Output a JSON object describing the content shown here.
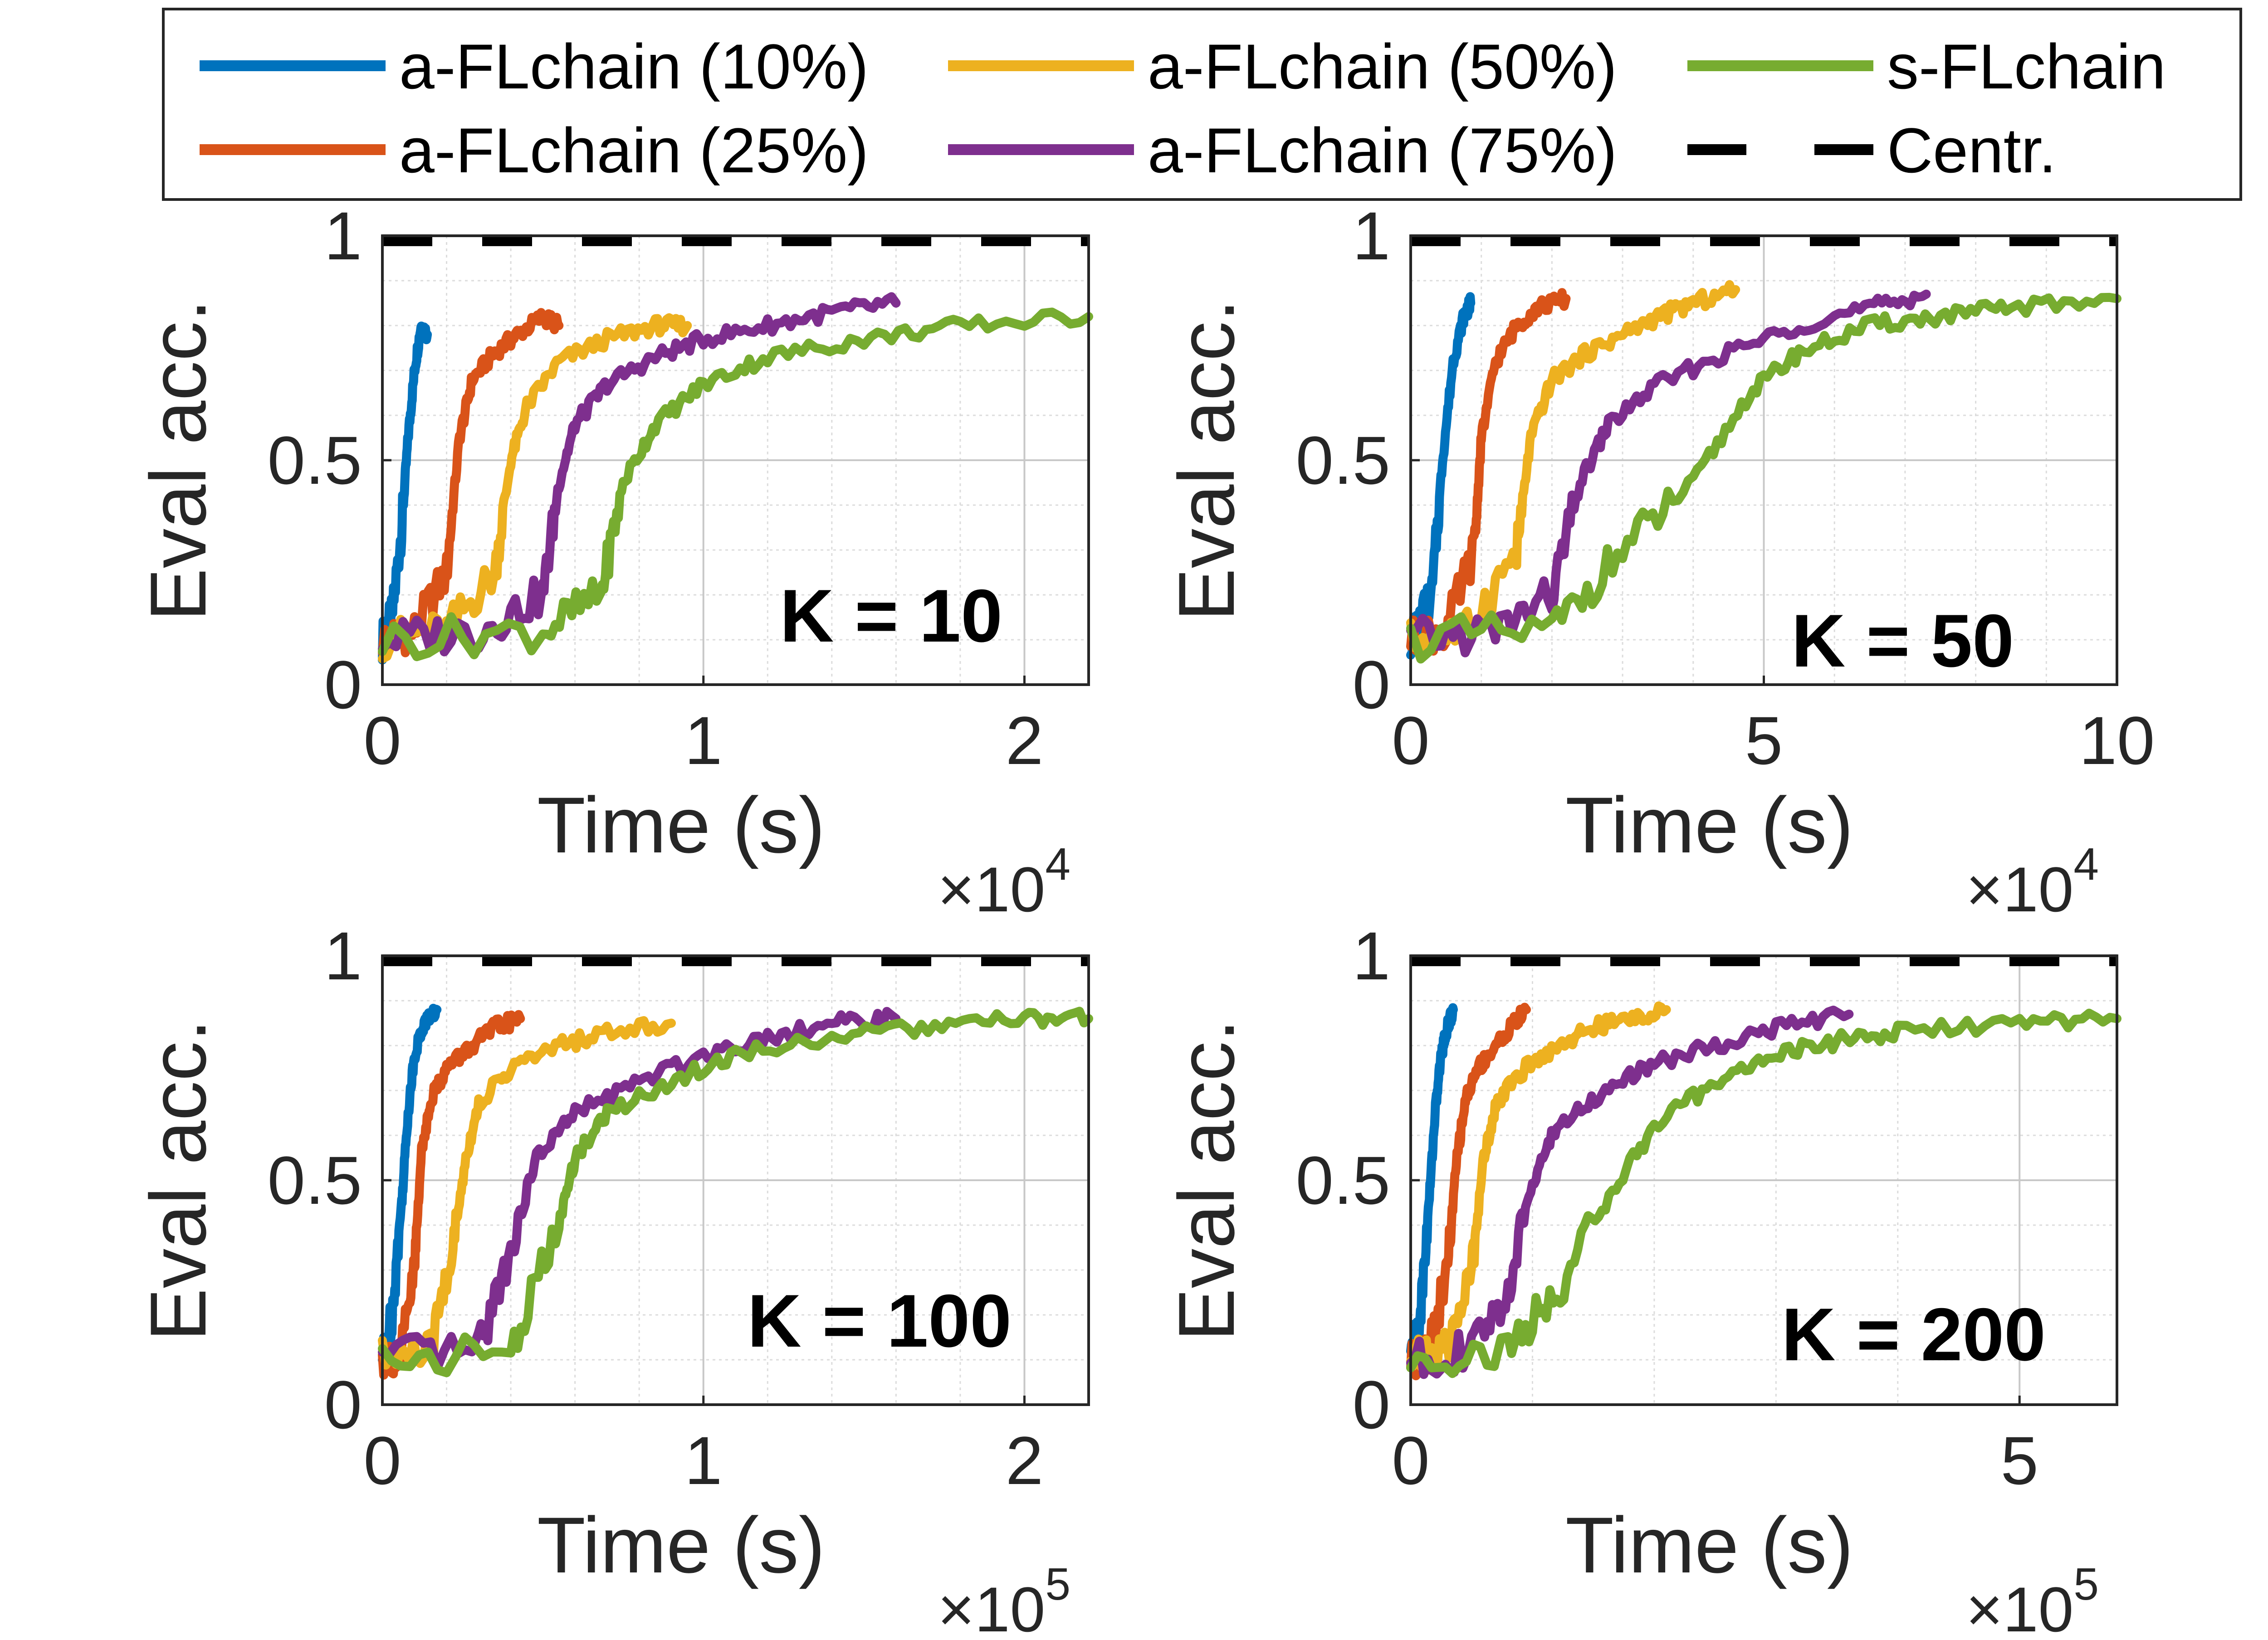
{
  "legend": {
    "entries": [
      {
        "label": "a-FLchain (10%)",
        "color": "#0072BD",
        "dashed": false
      },
      {
        "label": "a-FLchain (50%)",
        "color": "#EDB120",
        "dashed": false
      },
      {
        "label": "s-FLchain",
        "color": "#77AC30",
        "dashed": false
      },
      {
        "label": "a-FLchain (25%)",
        "color": "#D95319",
        "dashed": false
      },
      {
        "label": "a-FLchain (75%)",
        "color": "#7E2F8E",
        "dashed": false
      },
      {
        "label": "Centr.",
        "color": "#000000",
        "dashed": true
      }
    ]
  },
  "chart_data": [
    {
      "type": "line",
      "panel_label": "K = 10",
      "xlabel": "Time (s)",
      "ylabel": "Eval acc.",
      "x_exponent": "4",
      "xlim": [
        0,
        2.2
      ],
      "ylim": [
        0,
        1
      ],
      "xticks": [
        0,
        1,
        2
      ],
      "xtick_labels": [
        "0",
        "1",
        "2"
      ],
      "yticks": [
        0,
        0.5,
        1
      ],
      "ytick_labels": [
        "0",
        "0.5",
        "1"
      ],
      "grid": true,
      "series": [
        {
          "name": "a-FLchain (10%)",
          "x": [
            0,
            0.03,
            0.06,
            0.08,
            0.1,
            0.12,
            0.14
          ],
          "y": [
            0.1,
            0.15,
            0.35,
            0.55,
            0.7,
            0.8,
            0.78
          ]
        },
        {
          "name": "a-FLchain (25%)",
          "x": [
            0,
            0.1,
            0.2,
            0.24,
            0.28,
            0.35,
            0.42,
            0.5,
            0.55
          ],
          "y": [
            0.1,
            0.12,
            0.25,
            0.55,
            0.68,
            0.74,
            0.78,
            0.82,
            0.8
          ]
        },
        {
          "name": "a-FLchain (50%)",
          "x": [
            0,
            0.2,
            0.35,
            0.4,
            0.45,
            0.55,
            0.7,
            0.85,
            0.95
          ],
          "y": [
            0.1,
            0.12,
            0.25,
            0.5,
            0.62,
            0.72,
            0.77,
            0.8,
            0.8
          ]
        },
        {
          "name": "a-FLchain (75%)",
          "x": [
            0,
            0.3,
            0.5,
            0.55,
            0.6,
            0.7,
            0.85,
            1.0,
            1.2,
            1.4,
            1.6
          ],
          "y": [
            0.1,
            0.12,
            0.2,
            0.45,
            0.58,
            0.67,
            0.73,
            0.77,
            0.8,
            0.83,
            0.85
          ]
        },
        {
          "name": "s-FLchain",
          "x": [
            0,
            0.5,
            0.68,
            0.75,
            0.85,
            1.0,
            1.2,
            1.5,
            1.8,
            2.2
          ],
          "y": [
            0.1,
            0.12,
            0.2,
            0.45,
            0.58,
            0.67,
            0.73,
            0.77,
            0.8,
            0.82
          ]
        },
        {
          "name": "Centr.",
          "x": [
            0,
            2.2
          ],
          "y": [
            0.99,
            0.99
          ]
        }
      ]
    },
    {
      "type": "line",
      "panel_label": "K = 50",
      "xlabel": "Time (s)",
      "ylabel": "Eval acc.",
      "x_exponent": "4",
      "xlim": [
        0,
        10
      ],
      "ylim": [
        0,
        1
      ],
      "xticks": [
        0,
        5,
        10
      ],
      "xtick_labels": [
        "0",
        "5",
        "10"
      ],
      "yticks": [
        0,
        0.5,
        1
      ],
      "ytick_labels": [
        "0",
        "0.5",
        "1"
      ],
      "grid": true,
      "series": [
        {
          "name": "a-FLchain (10%)",
          "x": [
            0,
            0.3,
            0.45,
            0.6,
            0.75,
            0.85
          ],
          "y": [
            0.1,
            0.2,
            0.5,
            0.72,
            0.82,
            0.85
          ]
        },
        {
          "name": "a-FLchain (25%)",
          "x": [
            0,
            0.5,
            0.9,
            1.0,
            1.2,
            1.5,
            1.8,
            2.2
          ],
          "y": [
            0.1,
            0.12,
            0.3,
            0.55,
            0.72,
            0.8,
            0.84,
            0.86
          ]
        },
        {
          "name": "a-FLchain (50%)",
          "x": [
            0,
            0.8,
            1.5,
            1.7,
            2.0,
            2.5,
            3.0,
            3.5,
            4.0,
            4.6
          ],
          "y": [
            0.1,
            0.12,
            0.3,
            0.55,
            0.68,
            0.74,
            0.78,
            0.82,
            0.85,
            0.88
          ]
        },
        {
          "name": "a-FLchain (75%)",
          "x": [
            0,
            1.2,
            2.0,
            2.4,
            2.8,
            3.5,
            4.5,
            5.5,
            6.5,
            7.3
          ],
          "y": [
            0.1,
            0.12,
            0.2,
            0.45,
            0.58,
            0.67,
            0.74,
            0.8,
            0.84,
            0.87
          ]
        },
        {
          "name": "s-FLchain",
          "x": [
            0,
            2.0,
            3.0,
            4.0,
            4.8,
            5.5,
            6.5,
            7.5,
            8.5,
            10
          ],
          "y": [
            0.1,
            0.12,
            0.3,
            0.45,
            0.65,
            0.74,
            0.8,
            0.82,
            0.84,
            0.86
          ]
        },
        {
          "name": "Centr.",
          "x": [
            0,
            10
          ],
          "y": [
            0.99,
            0.99
          ]
        }
      ]
    },
    {
      "type": "line",
      "panel_label": "K = 100",
      "xlabel": "Time (s)",
      "ylabel": "Eval acc.",
      "x_exponent": "5",
      "xlim": [
        0,
        2.2
      ],
      "ylim": [
        0,
        1
      ],
      "xticks": [
        0,
        1,
        2
      ],
      "xtick_labels": [
        "0",
        "1",
        "2"
      ],
      "yticks": [
        0,
        0.5,
        1
      ],
      "ytick_labels": [
        "0",
        "0.5",
        "1"
      ],
      "grid": true,
      "series": [
        {
          "name": "a-FLchain (10%)",
          "x": [
            0,
            0.03,
            0.06,
            0.08,
            0.1,
            0.13,
            0.17
          ],
          "y": [
            0.1,
            0.2,
            0.45,
            0.65,
            0.78,
            0.85,
            0.88
          ]
        },
        {
          "name": "a-FLchain (25%)",
          "x": [
            0,
            0.06,
            0.1,
            0.12,
            0.15,
            0.2,
            0.28,
            0.35,
            0.43
          ],
          "y": [
            0.1,
            0.12,
            0.3,
            0.55,
            0.68,
            0.75,
            0.8,
            0.84,
            0.86
          ]
        },
        {
          "name": "a-FLchain (50%)",
          "x": [
            0,
            0.15,
            0.22,
            0.26,
            0.3,
            0.4,
            0.55,
            0.7,
            0.9
          ],
          "y": [
            0.1,
            0.12,
            0.35,
            0.55,
            0.67,
            0.75,
            0.8,
            0.83,
            0.85
          ]
        },
        {
          "name": "a-FLchain (75%)",
          "x": [
            0,
            0.3,
            0.4,
            0.48,
            0.6,
            0.8,
            1.0,
            1.2,
            1.4,
            1.6
          ],
          "y": [
            0.1,
            0.12,
            0.35,
            0.55,
            0.65,
            0.72,
            0.78,
            0.82,
            0.85,
            0.86
          ]
        },
        {
          "name": "s-FLchain",
          "x": [
            0,
            0.4,
            0.55,
            0.6,
            0.7,
            0.9,
            1.1,
            1.4,
            1.7,
            2.0,
            2.2
          ],
          "y": [
            0.1,
            0.12,
            0.4,
            0.55,
            0.65,
            0.72,
            0.78,
            0.82,
            0.84,
            0.86,
            0.86
          ]
        },
        {
          "name": "Centr.",
          "x": [
            0,
            2.2
          ],
          "y": [
            0.99,
            0.99
          ]
        }
      ]
    },
    {
      "type": "line",
      "panel_label": "K = 200",
      "xlabel": "Time (s)",
      "ylabel": "Eval acc.",
      "x_exponent": "5",
      "xlim": [
        0,
        5.8
      ],
      "ylim": [
        0,
        1
      ],
      "xticks": [
        0,
        5
      ],
      "xtick_labels": [
        "0",
        "5"
      ],
      "yticks": [
        0,
        0.5,
        1
      ],
      "ytick_labels": [
        "0",
        "0.5",
        "1"
      ],
      "grid": true,
      "series": [
        {
          "name": "a-FLchain (10%)",
          "x": [
            0,
            0.08,
            0.15,
            0.2,
            0.25,
            0.3,
            0.35
          ],
          "y": [
            0.1,
            0.2,
            0.45,
            0.65,
            0.78,
            0.84,
            0.88
          ]
        },
        {
          "name": "a-FLchain (25%)",
          "x": [
            0,
            0.15,
            0.3,
            0.38,
            0.45,
            0.55,
            0.7,
            0.85,
            0.95
          ],
          "y": [
            0.1,
            0.12,
            0.3,
            0.55,
            0.68,
            0.75,
            0.8,
            0.85,
            0.88
          ]
        },
        {
          "name": "a-FLchain (50%)",
          "x": [
            0,
            0.3,
            0.5,
            0.6,
            0.7,
            0.9,
            1.2,
            1.5,
            1.8,
            2.1
          ],
          "y": [
            0.1,
            0.12,
            0.3,
            0.55,
            0.67,
            0.74,
            0.8,
            0.84,
            0.86,
            0.88
          ]
        },
        {
          "name": "a-FLchain (75%)",
          "x": [
            0,
            0.5,
            0.8,
            1.0,
            1.2,
            1.6,
            2.0,
            2.5,
            3.0,
            3.6
          ],
          "y": [
            0.1,
            0.12,
            0.25,
            0.5,
            0.62,
            0.7,
            0.76,
            0.8,
            0.84,
            0.87
          ]
        },
        {
          "name": "s-FLchain",
          "x": [
            0,
            0.8,
            1.2,
            1.6,
            2.0,
            2.5,
            3.0,
            3.5,
            4.0,
            5.0,
            5.8
          ],
          "y": [
            0.1,
            0.12,
            0.25,
            0.45,
            0.62,
            0.72,
            0.78,
            0.81,
            0.83,
            0.85,
            0.86
          ]
        },
        {
          "name": "Centr.",
          "x": [
            0,
            5.8
          ],
          "y": [
            0.99,
            0.99
          ]
        }
      ]
    }
  ]
}
